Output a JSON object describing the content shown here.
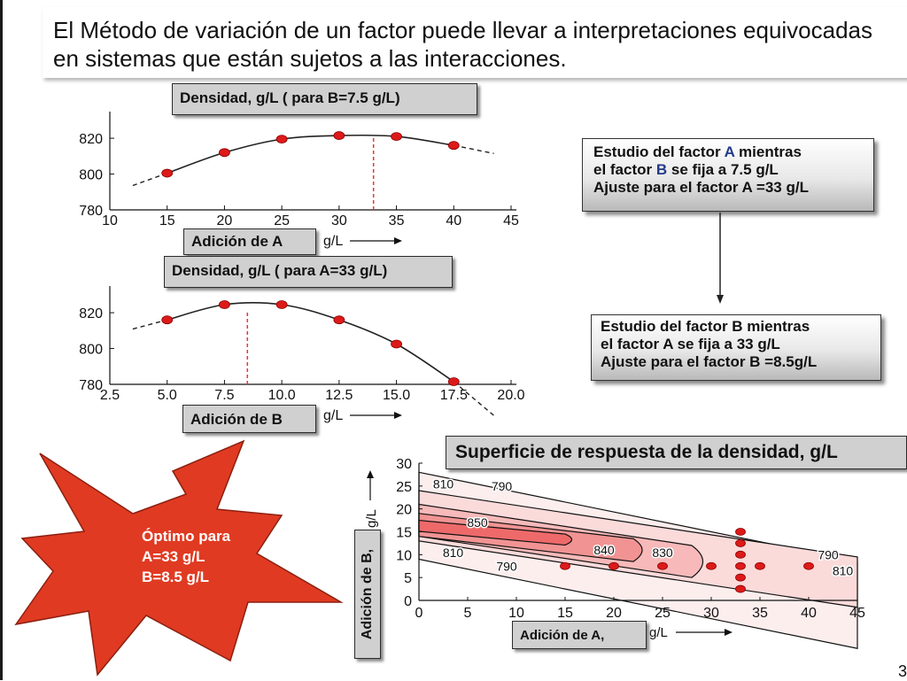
{
  "slide": {
    "title_line1": "El Método de variación de un factor puede llevar a interpretaciones equivocadas",
    "title_line2": "en sistemas que están sujetos a las interacciones.",
    "slide_number": "3"
  },
  "notes": {
    "factor_a": {
      "line1_pre": "Estudio del factor ",
      "line1_em": "A",
      "line1_post": " mientras",
      "line2_pre": "el factor ",
      "line2_em": "B",
      "line2_post": " se fija a 7.5 g/L",
      "line3": "Ajuste para el factor A =33 g/L"
    },
    "factor_b": {
      "line1": "Estudio del factor B mientras",
      "line2": "el factor A se fija a 33 g/L",
      "line3": "Ajuste para el factor B =8.5g/L"
    }
  },
  "labels": {
    "density_a": "Densidad, g/L ( para B=7.5 g/L)",
    "addition_a": "Adición de A",
    "density_b": "Densidad, g/L ( para A=33 g/L)",
    "addition_b": "Adición de B",
    "surface_title": "Superficie de respuesta de la densidad, g/L",
    "addition_a2": "Adición de A,",
    "addition_b2": "Adición de B,",
    "unit": "g/L"
  },
  "star": {
    "line1": "Óptimo para",
    "line2": "A=33 g/L",
    "line3": "B=8.5 g/L",
    "color": "#e03a22"
  },
  "chart_data": [
    {
      "type": "line",
      "ylabel": "Densidad, g/L ( para B=7.5 g/L)",
      "xlabel": "Adición de A g/L",
      "x": [
        15,
        20,
        25,
        30,
        35,
        40
      ],
      "y": [
        800.5,
        812,
        819.5,
        821.5,
        821,
        816
      ],
      "xlim": [
        10,
        45
      ],
      "ylim": [
        780,
        825
      ],
      "xticks": [
        "10",
        "15",
        "20",
        "25",
        "30",
        "35",
        "40",
        "45"
      ],
      "yticks": [
        "780",
        "800",
        "820"
      ],
      "optimum_x": 33,
      "colors": {
        "line": "#222222",
        "points": "#dd1a1a",
        "optimum": "#ee3333"
      }
    },
    {
      "type": "line",
      "ylabel": "Densidad, g/L ( para A=33 g/L)",
      "xlabel": "Adición de B g/L",
      "x": [
        5.0,
        7.5,
        10.0,
        12.5,
        15.0,
        17.5
      ],
      "y": [
        816,
        824.5,
        824.5,
        816,
        802.5,
        781.5
      ],
      "xlim": [
        2.5,
        20.0
      ],
      "ylim": [
        780,
        825
      ],
      "xticks": [
        "2.5",
        "5.0",
        "7.5",
        "10.0",
        "12.5",
        "15.0",
        "17.5",
        "20.0"
      ],
      "yticks": [
        "780",
        "800",
        "820"
      ],
      "optimum_x": 8.5,
      "colors": {
        "line": "#222222",
        "points": "#dd1a1a",
        "optimum": "#ee3333"
      }
    },
    {
      "type": "heatmap",
      "title": "Superficie de respuesta de la densidad, g/L",
      "xlabel": "Adición de A, g/L",
      "ylabel": "Adición de B, g/L",
      "xlim": [
        0,
        45
      ],
      "ylim": [
        0,
        30
      ],
      "xticks": [
        "0",
        "5",
        "10",
        "15",
        "20",
        "25",
        "30",
        "35",
        "40",
        "45"
      ],
      "yticks": [
        "0",
        "5",
        "10",
        "15",
        "20",
        "25",
        "30"
      ],
      "contours": [
        {
          "level": "790",
          "start": [
            0,
            28
          ],
          "end": [
            45,
            8.5
          ],
          "offset": 9.5
        },
        {
          "level": "810",
          "start": [
            0,
            24
          ],
          "end": [
            45,
            9.5
          ],
          "offset": 5.5
        },
        {
          "level": "830",
          "start": [
            0,
            21
          ],
          "end": [
            28,
            12
          ],
          "offset": 3.5
        },
        {
          "level": "840",
          "start": [
            0,
            19
          ],
          "end": [
            22,
            13.5
          ],
          "offset": 2.5
        },
        {
          "level": "850",
          "start": [
            0,
            17.5
          ],
          "end": [
            15,
            14.5
          ],
          "offset": 1.2
        }
      ],
      "contour_labels": [
        {
          "text": "810",
          "x": 2.5,
          "y": 25.5
        },
        {
          "text": "790",
          "x": 8.5,
          "y": 25
        },
        {
          "text": "850",
          "x": 6,
          "y": 17
        },
        {
          "text": "810",
          "x": 3.5,
          "y": 10.5
        },
        {
          "text": "840",
          "x": 19,
          "y": 11
        },
        {
          "text": "830",
          "x": 25,
          "y": 10.5
        },
        {
          "text": "790",
          "x": 9,
          "y": 7.5
        },
        {
          "text": "790",
          "x": 42,
          "y": 10
        },
        {
          "text": "810",
          "x": 43.5,
          "y": 6.5
        }
      ],
      "points": [
        {
          "x": 15,
          "y": 7.5
        },
        {
          "x": 20,
          "y": 7.5
        },
        {
          "x": 25,
          "y": 7.5
        },
        {
          "x": 30,
          "y": 7.5
        },
        {
          "x": 33,
          "y": 7.5
        },
        {
          "x": 35,
          "y": 7.5
        },
        {
          "x": 40,
          "y": 7.5
        },
        {
          "x": 33,
          "y": 2.5
        },
        {
          "x": 33,
          "y": 5
        },
        {
          "x": 33,
          "y": 10
        },
        {
          "x": 33,
          "y": 12.5
        },
        {
          "x": 33,
          "y": 15
        }
      ],
      "colors": {
        "fill_low": "#fde3e3",
        "fill_high": "#f06060",
        "points": "#dd1a1a"
      }
    }
  ]
}
